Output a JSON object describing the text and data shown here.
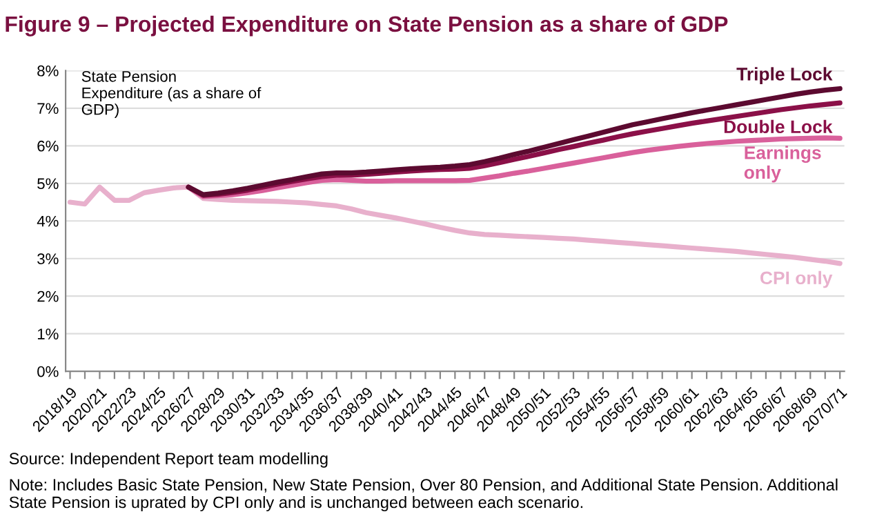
{
  "chart_data": {
    "type": "line",
    "title": "Figure 9 – Projected Expenditure on State Pension as a share of GDP",
    "ylabel": "State Pension\nExpenditure (as a share of\nGDP)",
    "categories": [
      "2018/19",
      null,
      "2020/21",
      null,
      "2022/23",
      null,
      "2024/25",
      null,
      "2026/27",
      null,
      "2028/29",
      null,
      "2030/31",
      null,
      "2032/33",
      null,
      "2034/35",
      null,
      "2036/37",
      null,
      "2038/39",
      null,
      "2040/41",
      null,
      "2042/43",
      null,
      "2044/45",
      null,
      "2046/47",
      null,
      "2048/49",
      null,
      "2050/51",
      null,
      "2052/53",
      null,
      "2054/55",
      null,
      "2056/57",
      null,
      "2058/59",
      null,
      "2060/61",
      null,
      "2062/63",
      null,
      "2064/65",
      null,
      "2066/67",
      null,
      "2068/69",
      null,
      "2070/71"
    ],
    "series": [
      {
        "name": "CPI only",
        "color": "#e8b0cc",
        "values": [
          4.5,
          4.45,
          4.9,
          4.55,
          4.55,
          4.75,
          4.82,
          4.88,
          4.9,
          4.6,
          4.57,
          4.55,
          4.54,
          4.53,
          4.52,
          4.5,
          4.48,
          4.44,
          4.4,
          4.32,
          4.22,
          4.15,
          4.08,
          4.0,
          3.92,
          3.83,
          3.75,
          3.68,
          3.64,
          3.62,
          3.6,
          3.58,
          3.56,
          3.54,
          3.52,
          3.49,
          3.46,
          3.43,
          3.4,
          3.37,
          3.34,
          3.31,
          3.28,
          3.25,
          3.22,
          3.19,
          3.15,
          3.11,
          3.07,
          3.03,
          2.98,
          2.93,
          2.87
        ]
      },
      {
        "name": "Earnings\nonly",
        "color": "#d9609b",
        "values": [
          null,
          null,
          null,
          null,
          null,
          null,
          null,
          null,
          4.9,
          4.65,
          4.67,
          4.7,
          4.75,
          4.81,
          4.88,
          4.95,
          5.02,
          5.08,
          5.1,
          5.08,
          5.06,
          5.06,
          5.07,
          5.07,
          5.07,
          5.07,
          5.07,
          5.08,
          5.14,
          5.2,
          5.27,
          5.33,
          5.4,
          5.47,
          5.54,
          5.61,
          5.68,
          5.75,
          5.82,
          5.88,
          5.93,
          5.98,
          6.02,
          6.06,
          6.09,
          6.12,
          6.14,
          6.16,
          6.18,
          6.19,
          6.2,
          6.21,
          6.2
        ]
      },
      {
        "name": "Double Lock",
        "color": "#8b1048",
        "values": [
          null,
          null,
          null,
          null,
          null,
          null,
          null,
          null,
          4.9,
          4.68,
          4.71,
          4.76,
          4.82,
          4.9,
          4.98,
          5.05,
          5.12,
          5.18,
          5.22,
          5.22,
          5.24,
          5.27,
          5.3,
          5.33,
          5.35,
          5.37,
          5.38,
          5.4,
          5.47,
          5.55,
          5.64,
          5.72,
          5.81,
          5.9,
          5.98,
          6.07,
          6.15,
          6.24,
          6.32,
          6.39,
          6.46,
          6.53,
          6.6,
          6.66,
          6.72,
          6.78,
          6.84,
          6.9,
          6.96,
          7.01,
          7.06,
          7.1,
          7.14
        ]
      },
      {
        "name": "Triple Lock",
        "color": "#5c0a30",
        "values": [
          null,
          null,
          null,
          null,
          null,
          null,
          null,
          null,
          4.9,
          4.7,
          4.74,
          4.8,
          4.87,
          4.95,
          5.03,
          5.1,
          5.18,
          5.25,
          5.28,
          5.28,
          5.3,
          5.33,
          5.36,
          5.39,
          5.41,
          5.43,
          5.46,
          5.5,
          5.58,
          5.67,
          5.77,
          5.86,
          5.96,
          6.06,
          6.16,
          6.26,
          6.36,
          6.46,
          6.56,
          6.64,
          6.72,
          6.8,
          6.88,
          6.95,
          7.02,
          7.09,
          7.16,
          7.23,
          7.3,
          7.37,
          7.43,
          7.48,
          7.52
        ]
      }
    ],
    "ylim": [
      0,
      8
    ],
    "yticks": [
      {
        "value": 0,
        "label": "0%"
      },
      {
        "value": 1,
        "label": "1%"
      },
      {
        "value": 2,
        "label": "2%"
      },
      {
        "value": 3,
        "label": "3%"
      },
      {
        "value": 4,
        "label": "4%"
      },
      {
        "value": 5,
        "label": "5%"
      },
      {
        "value": 6,
        "label": "6%"
      },
      {
        "value": 7,
        "label": "7%"
      },
      {
        "value": 8,
        "label": "8%"
      }
    ],
    "grid": "y",
    "legend": false,
    "marker": "none",
    "line_style": "solid",
    "annotations": [
      "Source: Independent Report team modelling",
      "Note: Includes Basic State Pension, New State Pension, Over 80 Pension, and Additional State Pension. Additional State Pension is uprated by CPI only and is unchanged between each scenario."
    ]
  }
}
